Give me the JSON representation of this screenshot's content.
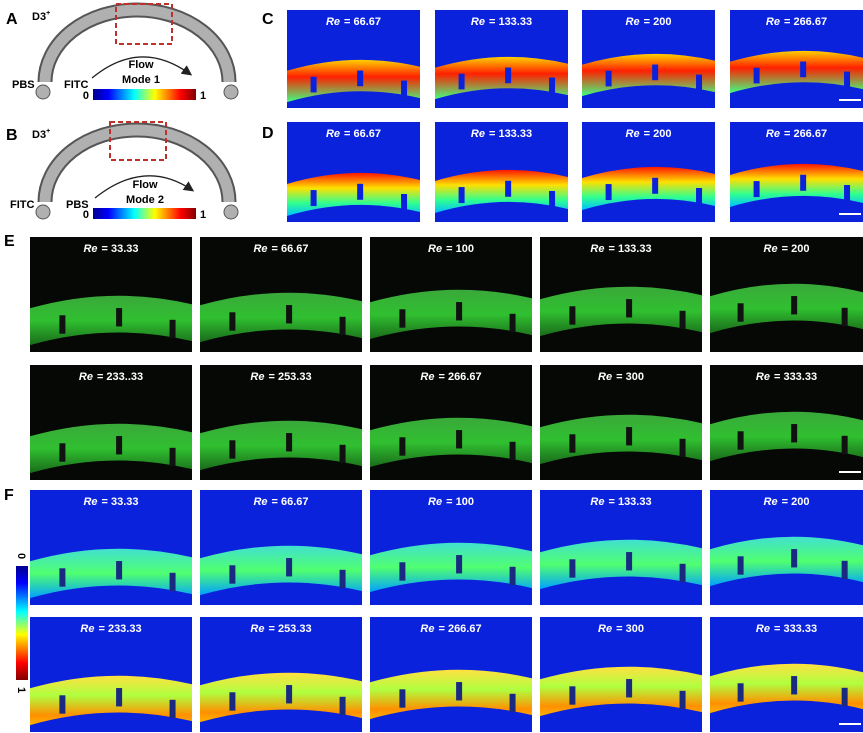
{
  "panels": {
    "A": {
      "label": "A",
      "d3": "D3",
      "sup": "+",
      "inlet_left": "PBS",
      "inlet_right": "FITC",
      "flow": "Flow",
      "mode": "Mode 1",
      "scale_min": "0",
      "scale_max": "1"
    },
    "B": {
      "label": "B",
      "d3": "D3",
      "sup": "+",
      "inlet_left": "FITC",
      "inlet_right": "PBS",
      "flow": "Flow",
      "mode": "Mode 2",
      "scale_min": "0",
      "scale_max": "1"
    },
    "C": {
      "label": "C",
      "symbol": "Re",
      "rows": [
        [
          "= 66.67",
          "= 133.33",
          "= 200",
          "= 266.67"
        ]
      ]
    },
    "D": {
      "label": "D",
      "symbol": "Re",
      "rows": [
        [
          "= 66.67",
          "= 133.33",
          "= 200",
          "= 266.67"
        ]
      ]
    },
    "E": {
      "label": "E",
      "symbol": "Re",
      "rows": [
        [
          "= 33.33",
          "= 66.67",
          "= 100",
          "= 133.33",
          "= 200"
        ],
        [
          "= 233..33",
          "= 253.33",
          "= 266.67",
          "= 300",
          "= 333.33"
        ]
      ]
    },
    "F": {
      "label": "F",
      "symbol": "Re",
      "rows": [
        [
          "= 33.33",
          "= 66.67",
          "= 100",
          "= 133.33",
          "= 200"
        ],
        [
          "= 233.33",
          "= 253.33",
          "= 266.67",
          "= 300",
          "= 333.33"
        ]
      ],
      "scale_min": "0",
      "scale_max": "1"
    }
  }
}
